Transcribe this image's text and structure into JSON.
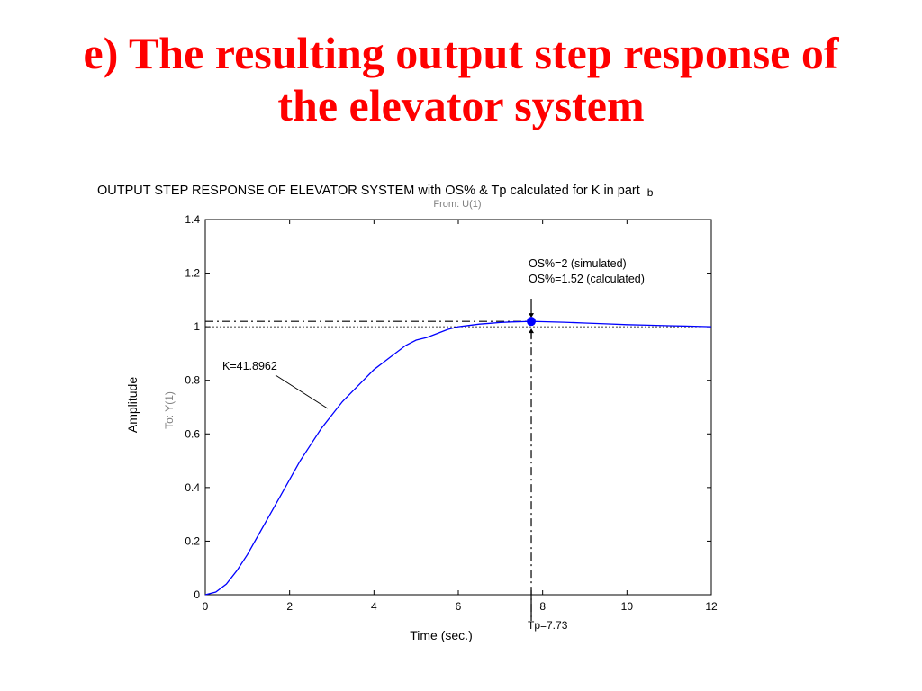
{
  "slide": {
    "title_line1": "e) The resulting output step response of",
    "title_line2": "the elevator system"
  },
  "chart_data": {
    "type": "line",
    "title": "OUTPUT STEP RESPONSE OF ELEVATOR SYSTEM with OS% & Tp calculated for K in part",
    "title_suffix": "b",
    "subtitle": "From: U(1)",
    "xlabel": "Time (sec.)",
    "ylabel": "Amplitude",
    "ylabel2": "To: Y(1)",
    "xlim": [
      0,
      12
    ],
    "ylim": [
      0,
      1.4
    ],
    "xticks": [
      "0",
      "2",
      "4",
      "6",
      "8",
      "10",
      "12"
    ],
    "xtick_values": [
      0,
      2,
      4,
      6,
      8,
      10,
      12
    ],
    "yticks": [
      "0",
      "0.2",
      "0.4",
      "0.6",
      "0.8",
      "1",
      "1.2",
      "1.4"
    ],
    "ytick_values": [
      0,
      0.2,
      0.4,
      0.6,
      0.8,
      1.0,
      1.2,
      1.4
    ],
    "grid": false,
    "series": [
      {
        "name": "K=41.8962",
        "color": "#0000ff",
        "x": [
          0,
          0.25,
          0.5,
          0.75,
          1.0,
          1.25,
          1.5,
          1.75,
          2.0,
          2.25,
          2.5,
          2.75,
          3.0,
          3.25,
          3.5,
          3.75,
          4.0,
          4.25,
          4.5,
          4.75,
          5.0,
          5.25,
          5.5,
          5.75,
          6.0,
          6.25,
          6.5,
          6.75,
          7.0,
          7.25,
          7.5,
          7.73,
          8.0,
          8.5,
          9.0,
          9.5,
          10.0,
          10.5,
          11.0,
          11.5,
          12.0
        ],
        "y": [
          0,
          0.01,
          0.04,
          0.09,
          0.15,
          0.22,
          0.29,
          0.36,
          0.43,
          0.5,
          0.56,
          0.62,
          0.67,
          0.72,
          0.76,
          0.8,
          0.84,
          0.87,
          0.9,
          0.93,
          0.95,
          0.96,
          0.975,
          0.99,
          1.0,
          1.005,
          1.01,
          1.013,
          1.016,
          1.018,
          1.019,
          1.02,
          1.019,
          1.017,
          1.014,
          1.011,
          1.008,
          1.006,
          1.004,
          1.002,
          1.0
        ]
      }
    ],
    "peak": {
      "x": 7.73,
      "y": 1.02
    },
    "final_value": 1.0,
    "annotations": {
      "os_simulated": "OS%=2 (simulated)",
      "os_calculated": "OS%=1.52 (calculated)",
      "tp_label": "Tp=7.73",
      "k_label": "K=41.8962"
    },
    "colors": {
      "curve": "#0000ff",
      "peak_marker": "#0000ff",
      "title_text": "#ff0000",
      "axis": "#000000",
      "subtitle": "#808080"
    }
  }
}
